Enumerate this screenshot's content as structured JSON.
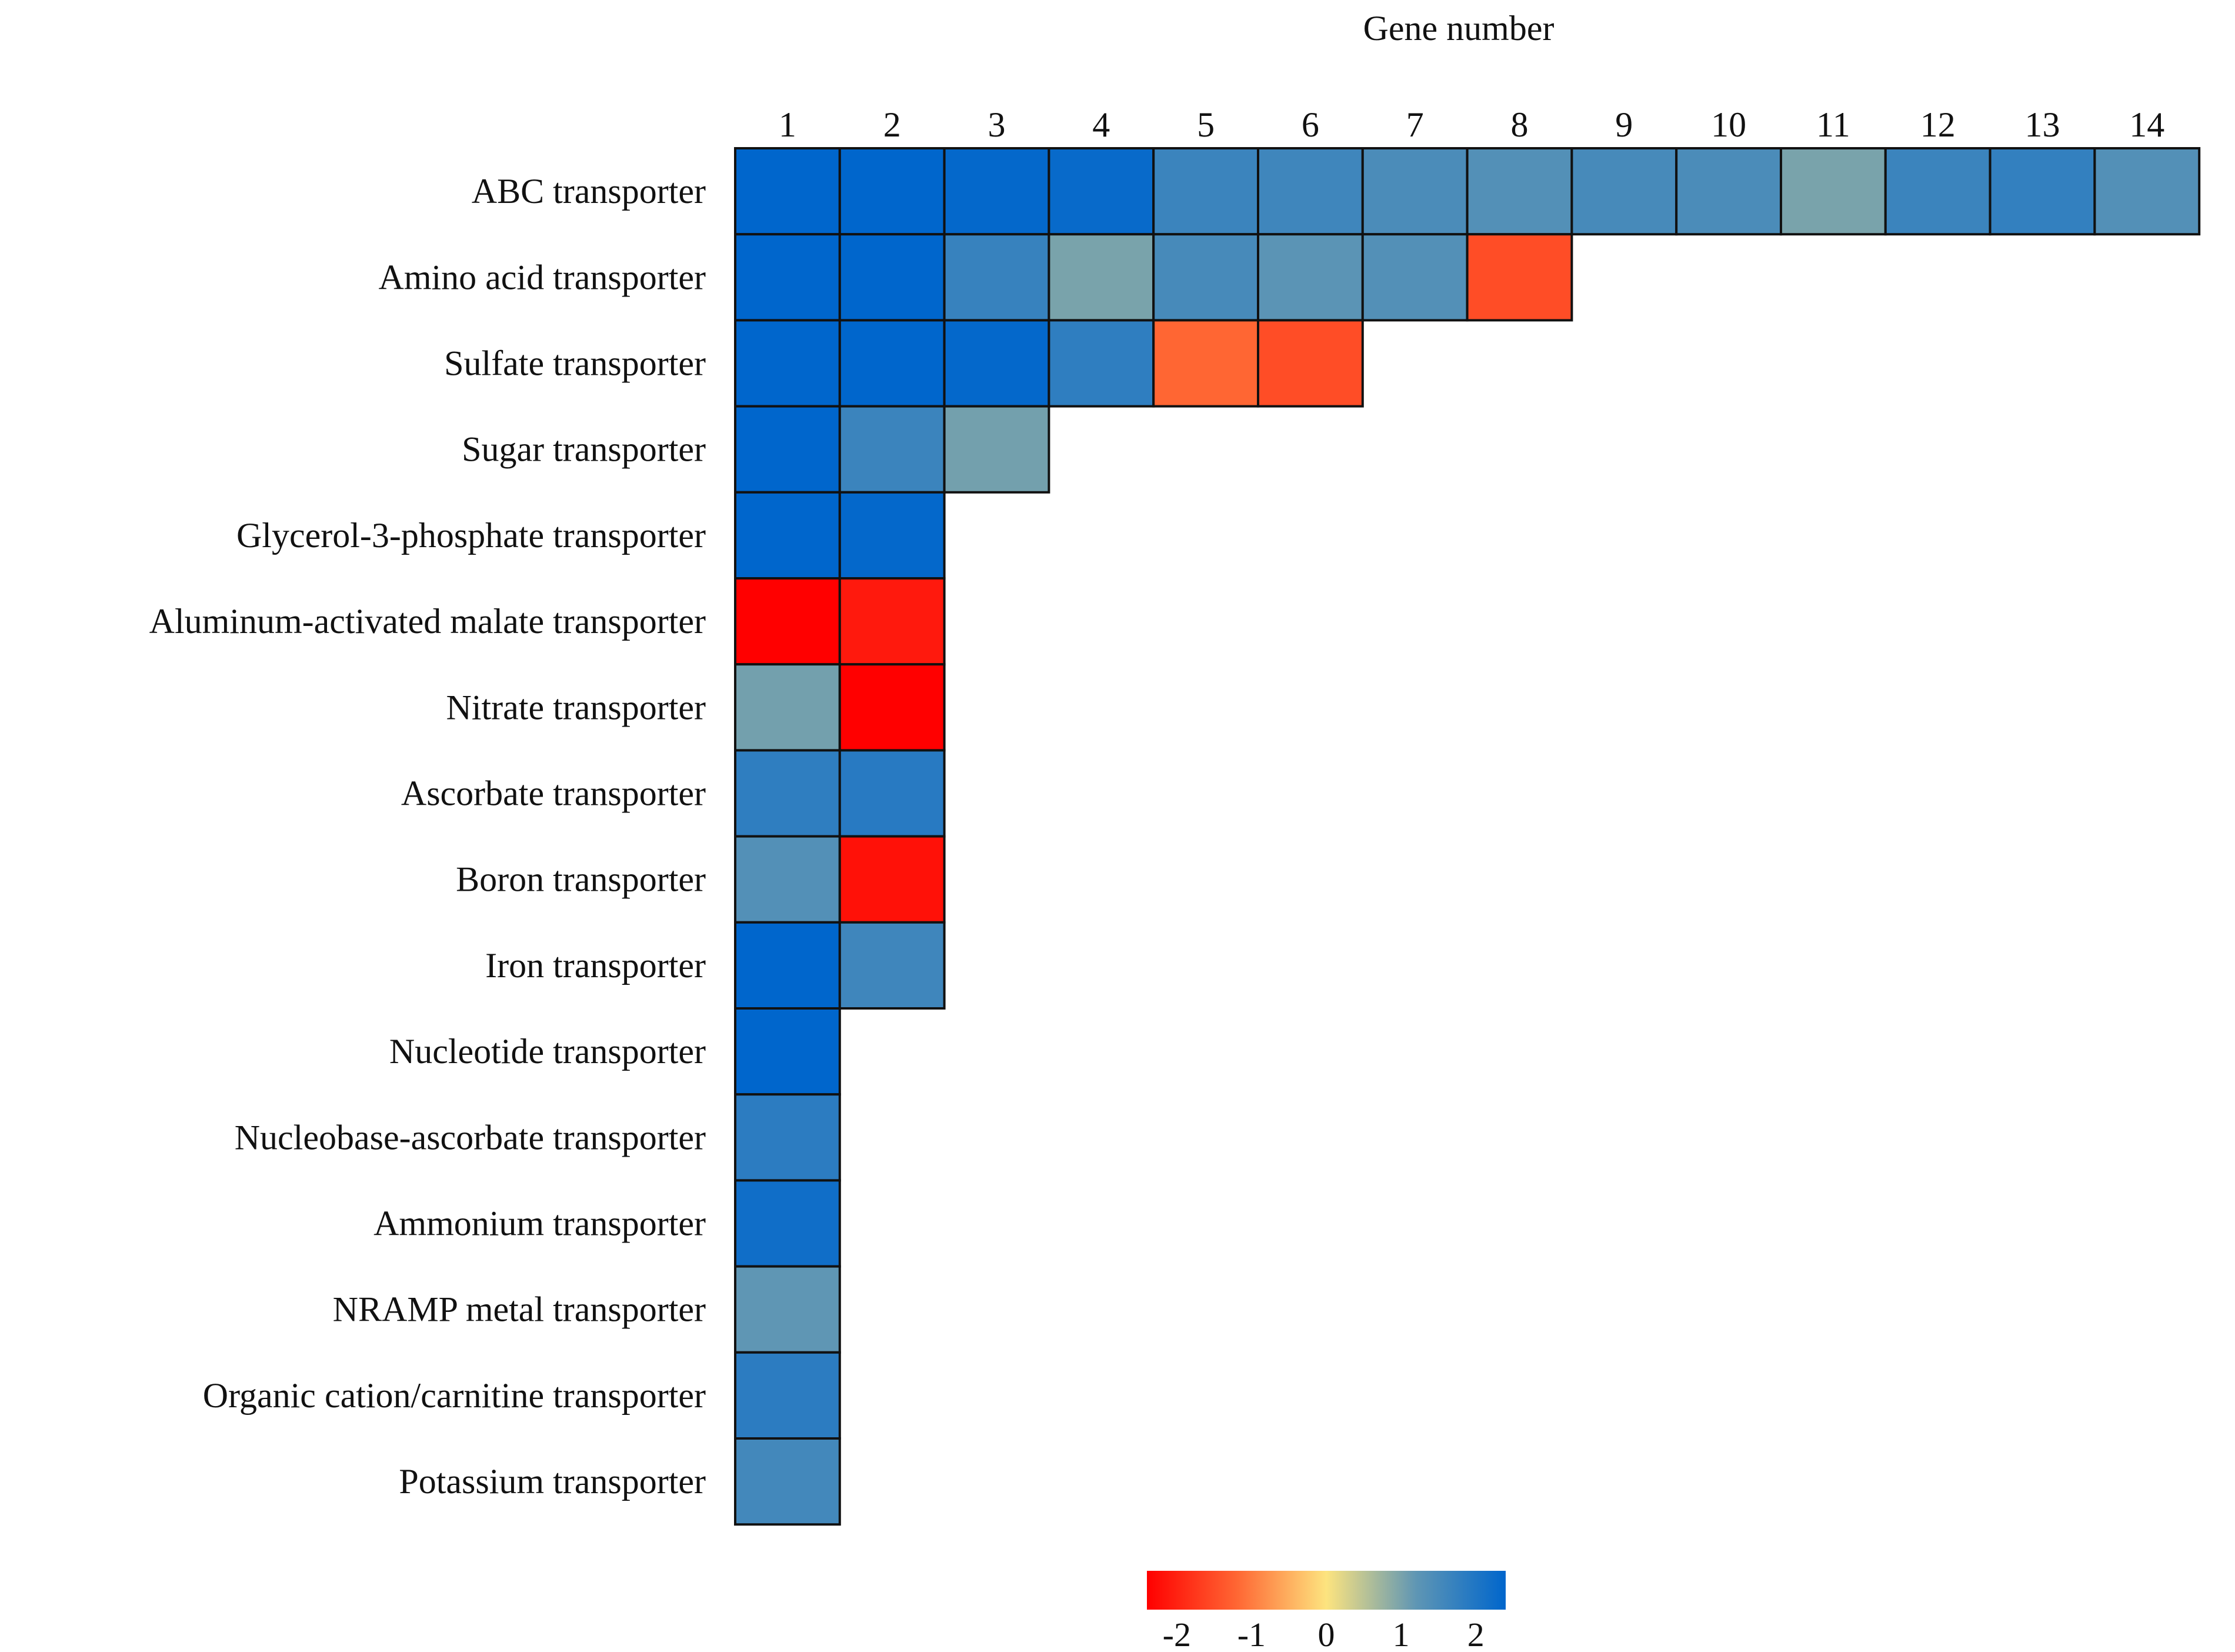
{
  "chart_data": {
    "type": "heatmap",
    "title": "",
    "xlabel": "Gene number",
    "ylabel": "",
    "columns": [
      "1",
      "2",
      "3",
      "4",
      "5",
      "6",
      "7",
      "8",
      "9",
      "10",
      "11",
      "12",
      "13",
      "14"
    ],
    "rows": [
      "ABC transporter",
      "Amino acid transporter",
      "Sulfate transporter",
      "Sugar transporter",
      "Glycerol-3-phosphate transporter",
      "Aluminum-activated malate transporter",
      "Nitrate transporter",
      "Ascorbate transporter",
      "Boron transporter",
      "Iron transporter",
      "Nucleotide transporter",
      "Nucleobase-ascorbate transporter",
      "Ammonium transporter",
      "NRAMP metal transporter",
      "Organic cation/carnitine transporter",
      "Potassium transporter"
    ],
    "values": [
      [
        2.4,
        2.4,
        2.35,
        2.3,
        1.65,
        1.6,
        1.45,
        1.35,
        1.5,
        1.45,
        1.0,
        1.65,
        1.75,
        1.35
      ],
      [
        2.4,
        2.4,
        1.7,
        1.0,
        1.5,
        1.25,
        1.35,
        -1.5
      ],
      [
        2.4,
        2.4,
        2.35,
        1.8,
        -1.2,
        -1.5
      ],
      [
        2.4,
        1.65,
        1.05
      ],
      [
        2.4,
        2.35
      ],
      [
        -2.4,
        -2.1
      ],
      [
        1.05,
        -2.4
      ],
      [
        1.8,
        1.9
      ],
      [
        1.35,
        -2.2
      ],
      [
        2.4,
        1.6
      ],
      [
        2.4
      ],
      [
        1.85
      ],
      [
        2.2
      ],
      [
        1.2
      ],
      [
        1.85
      ],
      [
        1.55
      ]
    ],
    "colorbar": {
      "ticks": [
        "-2",
        "-1",
        "0",
        "1",
        "2"
      ],
      "range": [
        -2.4,
        2.4
      ],
      "colors": [
        "#ff0000",
        "#ff6633",
        "#fde47f",
        "#5f96b4",
        "#0066cc"
      ]
    }
  }
}
